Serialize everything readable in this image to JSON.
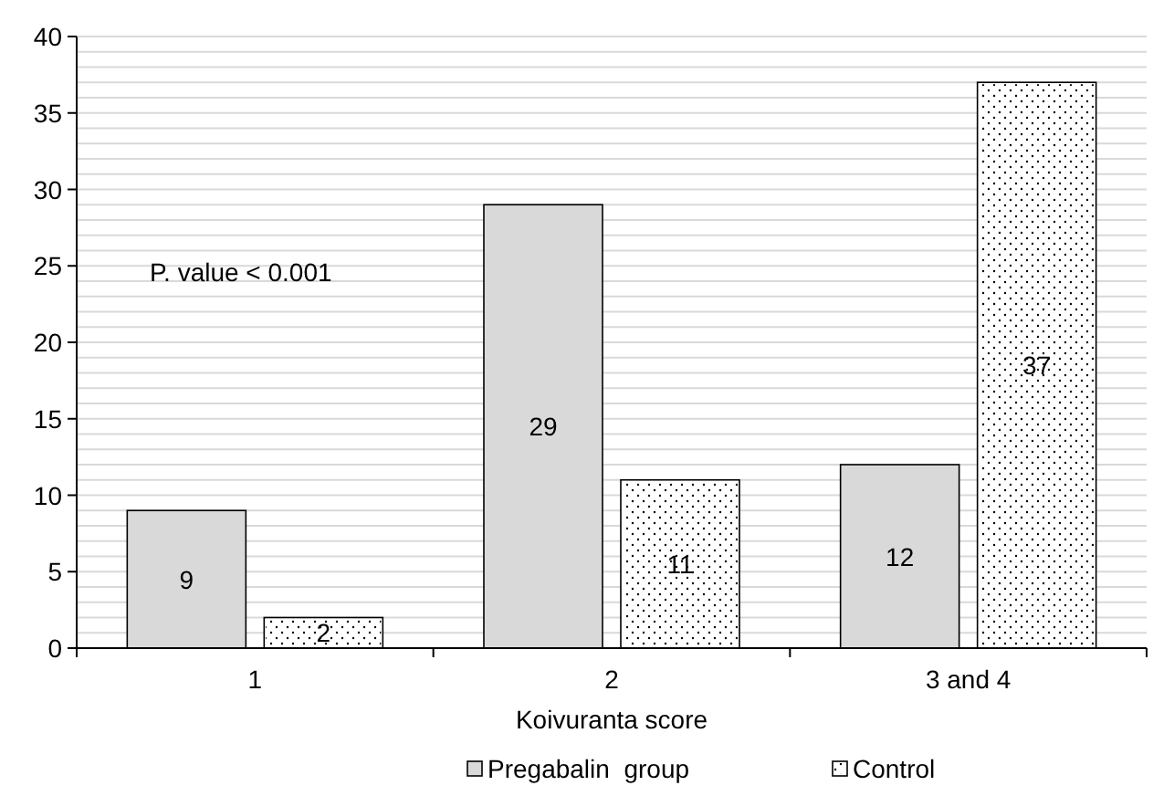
{
  "chart_data": {
    "type": "bar",
    "xlabel": "Koivuranta score",
    "categories": [
      "1",
      "2",
      "3 and 4"
    ],
    "series": [
      {
        "name": "Pregabalin  group",
        "color": "#d9d9d9",
        "values": [
          9,
          29,
          12
        ]
      },
      {
        "name": "Control",
        "color": "#ffffff",
        "values": [
          2,
          11,
          37
        ]
      }
    ],
    "ylim": [
      0,
      40
    ],
    "yticks": [
      0,
      {
        "value": 1,
        "label": null
      },
      {
        "value": 2,
        "label": null
      },
      {
        "value": 3,
        "label": null
      },
      {
        "value": 4,
        "label": null
      },
      5,
      {
        "value": 6,
        "label": null
      },
      {
        "value": 7,
        "label": null
      },
      {
        "value": 8,
        "label": null
      },
      {
        "value": 9,
        "label": null
      },
      10,
      {
        "value": 11,
        "label": null
      },
      {
        "value": 12,
        "label": null
      },
      {
        "value": 13,
        "label": null
      },
      {
        "value": 14,
        "label": null
      },
      15,
      {
        "value": 16,
        "label": null
      },
      {
        "value": 17,
        "label": null
      },
      {
        "value": 18,
        "label": null
      },
      {
        "value": 19,
        "label": null
      },
      20,
      {
        "value": 21,
        "label": null
      },
      {
        "value": 22,
        "label": null
      },
      {
        "value": 23,
        "label": null
      },
      {
        "value": 24,
        "label": null
      },
      25,
      {
        "value": 26,
        "label": null
      },
      {
        "value": 27,
        "label": null
      },
      {
        "value": 28,
        "label": null
      },
      {
        "value": 29,
        "label": null
      },
      30,
      {
        "value": 31,
        "label": null
      },
      {
        "value": 32,
        "label": null
      },
      {
        "value": 33,
        "label": null
      },
      {
        "value": 34,
        "label": null
      },
      35,
      {
        "value": 36,
        "label": null
      },
      {
        "value": 37,
        "label": null
      },
      {
        "value": 38,
        "label": null
      },
      {
        "value": 39,
        "label": null
      },
      40
    ],
    "grid": true,
    "legend": "bottom",
    "data_labels": true,
    "annotations": [
      "P. value < 0.001"
    ]
  }
}
